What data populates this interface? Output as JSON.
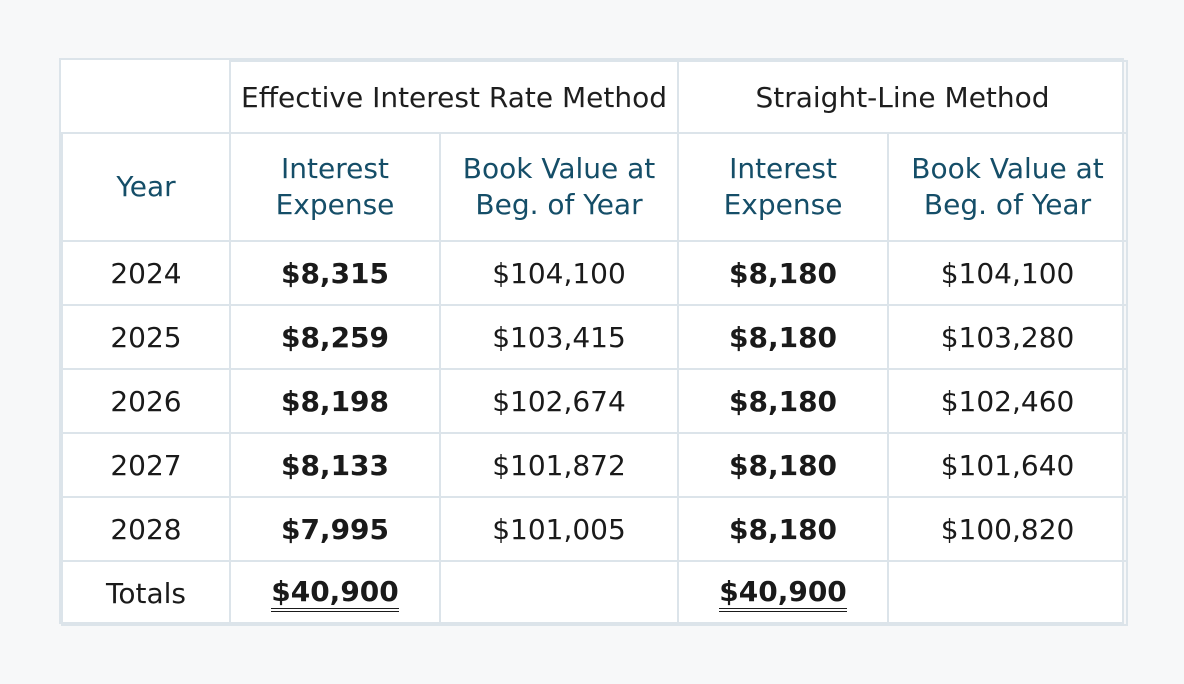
{
  "groups": {
    "effective": "Effective Interest Rate Method",
    "straight": "Straight-Line Method"
  },
  "columns": {
    "year": "Year",
    "interest_expense_line1": "Interest",
    "interest_expense_line2": "Expense",
    "book_value_line1": "Book Value at",
    "book_value_line2": "Beg. of Year"
  },
  "rows": [
    {
      "year": "2024",
      "eir_interest": "$8,315",
      "eir_book": "$104,100",
      "sl_interest": "$8,180",
      "sl_book": "$104,100"
    },
    {
      "year": "2025",
      "eir_interest": "$8,259",
      "eir_book": "$103,415",
      "sl_interest": "$8,180",
      "sl_book": "$103,280"
    },
    {
      "year": "2026",
      "eir_interest": "$8,198",
      "eir_book": "$102,674",
      "sl_interest": "$8,180",
      "sl_book": "$102,460"
    },
    {
      "year": "2027",
      "eir_interest": "$8,133",
      "eir_book": "$101,872",
      "sl_interest": "$8,180",
      "sl_book": "$101,640"
    },
    {
      "year": "2028",
      "eir_interest": "$7,995",
      "eir_book": "$101,005",
      "sl_interest": "$8,180",
      "sl_book": "$100,820"
    }
  ],
  "totals": {
    "label": "Totals",
    "eir_interest": "$40,900",
    "sl_interest": "$40,900"
  }
}
